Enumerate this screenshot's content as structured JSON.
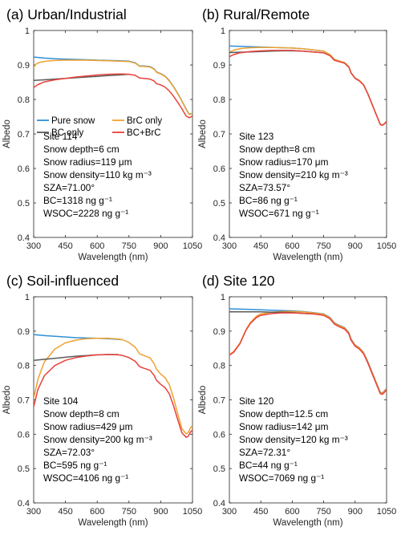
{
  "colors": {
    "pure_snow": "#2E8FD6",
    "brc_only": "#F0A030",
    "bc_only": "#5A5A5A",
    "bc_brc": "#E8413A"
  },
  "legend": {
    "pure_snow": "Pure snow",
    "brc_only": "BrC only",
    "bc_only": "BC only",
    "bc_brc": "BC+BrC"
  },
  "chart_data": [
    {
      "type": "line",
      "title": "(a) Urban/Industrial",
      "xlabel": "Wavelength (nm)",
      "ylabel": "Albedo",
      "xlim": [
        300,
        1050
      ],
      "ylim": [
        0.4,
        1.0
      ],
      "xticks": [
        "300",
        "450",
        "600",
        "750",
        "900",
        "1050"
      ],
      "yticks": [
        "0.4",
        "0.5",
        "0.6",
        "0.7",
        "0.8",
        "0.9",
        "1"
      ],
      "info": [
        "Site 114",
        "Snow depth=6 cm",
        "Snow radius=119 μm",
        "Snow density=110 kg m⁻³",
        "SZA=71.00°",
        "BC=1318 ng g⁻¹",
        "WSOC=2228 ng g⁻¹"
      ],
      "series": [
        {
          "name": "Pure snow",
          "color_key": "pure_snow",
          "x": [
            300,
            350,
            400,
            450,
            500,
            550,
            600,
            650,
            700,
            750,
            780,
            800,
            820,
            850,
            870,
            880,
            900,
            920,
            940,
            960,
            980,
            1000,
            1020,
            1035,
            1050
          ],
          "y": [
            0.923,
            0.92,
            0.918,
            0.917,
            0.916,
            0.915,
            0.914,
            0.913,
            0.912,
            0.911,
            0.906,
            0.897,
            0.897,
            0.895,
            0.888,
            0.88,
            0.875,
            0.868,
            0.855,
            0.838,
            0.818,
            0.796,
            0.772,
            0.757,
            0.76
          ]
        },
        {
          "name": "BrC only",
          "color_key": "brc_only",
          "x": [
            300,
            310,
            330,
            360,
            400,
            450,
            500,
            550,
            600,
            650,
            700,
            750,
            780,
            800,
            820,
            850,
            870,
            880,
            900,
            920,
            940,
            960,
            980,
            1000,
            1020,
            1035,
            1050
          ],
          "y": [
            0.893,
            0.902,
            0.908,
            0.911,
            0.913,
            0.914,
            0.914,
            0.914,
            0.913,
            0.912,
            0.911,
            0.91,
            0.905,
            0.896,
            0.896,
            0.894,
            0.887,
            0.879,
            0.874,
            0.867,
            0.854,
            0.837,
            0.817,
            0.795,
            0.771,
            0.756,
            0.759
          ]
        },
        {
          "name": "BC only",
          "color_key": "bc_only",
          "x": [
            300,
            350,
            400,
            450,
            500,
            550,
            600,
            650,
            700,
            750
          ],
          "y": [
            0.855,
            0.857,
            0.859,
            0.861,
            0.863,
            0.865,
            0.867,
            0.869,
            0.871,
            0.873
          ]
        },
        {
          "name": "BC+BrC",
          "color_key": "bc_brc",
          "x": [
            300,
            320,
            350,
            400,
            450,
            500,
            550,
            600,
            650,
            700,
            720,
            750,
            780,
            800,
            820,
            850,
            870,
            880,
            900,
            920,
            940,
            960,
            980,
            1000,
            1020,
            1035,
            1050
          ],
          "y": [
            0.835,
            0.843,
            0.851,
            0.857,
            0.861,
            0.865,
            0.868,
            0.871,
            0.873,
            0.874,
            0.874,
            0.873,
            0.87,
            0.862,
            0.861,
            0.859,
            0.853,
            0.846,
            0.842,
            0.836,
            0.825,
            0.81,
            0.792,
            0.773,
            0.752,
            0.747,
            0.752
          ]
        }
      ]
    },
    {
      "type": "line",
      "title": "(b) Rural/Remote",
      "xlabel": "Wavelength (nm)",
      "ylabel": "Albedo",
      "xlim": [
        300,
        1050
      ],
      "ylim": [
        0.4,
        1.0
      ],
      "xticks": [
        "300",
        "450",
        "600",
        "750",
        "900",
        "1050"
      ],
      "yticks": [
        "0.4",
        "0.5",
        "0.6",
        "0.7",
        "0.8",
        "0.9",
        "1"
      ],
      "info": [
        "Site 123",
        "Snow depth=8 cm",
        "Snow radius=170 μm",
        "Snow density=210 kg m⁻³",
        "SZA=73.57°",
        "BC=86 ng g⁻¹",
        "WSOC=671 ng g⁻¹"
      ],
      "series": [
        {
          "name": "Pure snow",
          "color_key": "pure_snow",
          "x": [
            300,
            350,
            400,
            450,
            500,
            550,
            600,
            650,
            700,
            750,
            780,
            800,
            820,
            850,
            870,
            880,
            900,
            920,
            940,
            960,
            980,
            1000,
            1020,
            1030,
            1040,
            1050
          ],
          "y": [
            0.955,
            0.954,
            0.953,
            0.952,
            0.951,
            0.95,
            0.949,
            0.947,
            0.944,
            0.94,
            0.93,
            0.917,
            0.912,
            0.907,
            0.895,
            0.878,
            0.862,
            0.855,
            0.843,
            0.818,
            0.788,
            0.758,
            0.728,
            0.726,
            0.73,
            0.737
          ]
        },
        {
          "name": "BrC only",
          "color_key": "brc_only",
          "x": [
            300,
            310,
            330,
            360,
            400,
            450,
            500,
            550,
            600,
            650,
            700,
            750,
            780,
            800,
            820,
            850,
            870,
            880,
            900,
            920,
            940,
            960,
            980,
            1000,
            1020,
            1030,
            1040,
            1050
          ],
          "y": [
            0.935,
            0.94,
            0.945,
            0.948,
            0.95,
            0.951,
            0.951,
            0.95,
            0.949,
            0.947,
            0.944,
            0.94,
            0.93,
            0.917,
            0.912,
            0.907,
            0.895,
            0.878,
            0.862,
            0.855,
            0.843,
            0.818,
            0.788,
            0.758,
            0.728,
            0.726,
            0.73,
            0.737
          ]
        },
        {
          "name": "BC only",
          "color_key": "bc_only",
          "x": [
            300,
            350,
            400,
            450,
            500,
            550,
            600,
            650,
            700,
            750
          ],
          "y": [
            0.936,
            0.937,
            0.938,
            0.939,
            0.94,
            0.941,
            0.941,
            0.94,
            0.938,
            0.935
          ]
        },
        {
          "name": "BC+BrC",
          "color_key": "bc_brc",
          "x": [
            300,
            320,
            350,
            400,
            450,
            500,
            550,
            600,
            650,
            700,
            750,
            780,
            800,
            820,
            850,
            870,
            880,
            900,
            920,
            940,
            960,
            980,
            1000,
            1020,
            1030,
            1040,
            1050
          ],
          "y": [
            0.924,
            0.93,
            0.935,
            0.939,
            0.941,
            0.942,
            0.942,
            0.942,
            0.94,
            0.938,
            0.935,
            0.927,
            0.914,
            0.91,
            0.905,
            0.893,
            0.877,
            0.861,
            0.854,
            0.842,
            0.817,
            0.787,
            0.757,
            0.727,
            0.725,
            0.729,
            0.736
          ]
        }
      ]
    },
    {
      "type": "line",
      "title": "(c) Soil-influenced",
      "xlabel": "Wavelength (nm)",
      "ylabel": "Albedo",
      "xlim": [
        300,
        1050
      ],
      "ylim": [
        0.4,
        1.0
      ],
      "xticks": [
        "300",
        "450",
        "600",
        "750",
        "900",
        "1050"
      ],
      "yticks": [
        "0.4",
        "0.5",
        "0.6",
        "0.7",
        "0.8",
        "0.9",
        "1"
      ],
      "info": [
        "Site 104",
        "Snow depth=8 cm",
        "Snow radius=429 μm",
        "Snow density=200 kg m⁻³",
        "SZA=72.03°",
        "BC=595 ng g⁻¹",
        "WSOC=4106 ng g⁻¹"
      ],
      "series": [
        {
          "name": "Pure snow",
          "color_key": "pure_snow",
          "x": [
            300,
            350,
            400,
            450,
            500,
            550,
            600,
            650,
            700,
            720
          ],
          "y": [
            0.89,
            0.887,
            0.885,
            0.883,
            0.881,
            0.88,
            0.879,
            0.878,
            0.876,
            0.875
          ]
        },
        {
          "name": "BrC only",
          "color_key": "brc_only",
          "x": [
            300,
            320,
            350,
            400,
            450,
            500,
            550,
            600,
            650,
            700,
            720,
            750,
            780,
            800,
            820,
            850,
            870,
            880,
            900,
            920,
            940,
            960,
            980,
            1000,
            1020,
            1030,
            1040,
            1050
          ],
          "y": [
            0.705,
            0.76,
            0.81,
            0.848,
            0.866,
            0.874,
            0.878,
            0.879,
            0.879,
            0.877,
            0.875,
            0.867,
            0.853,
            0.834,
            0.829,
            0.822,
            0.804,
            0.789,
            0.775,
            0.765,
            0.745,
            0.707,
            0.66,
            0.616,
            0.601,
            0.605,
            0.618,
            0.625
          ]
        },
        {
          "name": "BC only",
          "color_key": "bc_only",
          "x": [
            300,
            350,
            400,
            450,
            500,
            550,
            600,
            650,
            700
          ],
          "y": [
            0.815,
            0.818,
            0.821,
            0.824,
            0.827,
            0.829,
            0.831,
            0.832,
            0.832
          ]
        },
        {
          "name": "BC+BrC",
          "color_key": "bc_brc",
          "x": [
            300,
            320,
            350,
            400,
            450,
            500,
            550,
            600,
            650,
            700,
            720,
            750,
            780,
            800,
            820,
            850,
            870,
            880,
            900,
            920,
            940,
            960,
            980,
            1000,
            1020,
            1030,
            1040,
            1050
          ],
          "y": [
            0.68,
            0.73,
            0.77,
            0.8,
            0.815,
            0.823,
            0.828,
            0.831,
            0.832,
            0.831,
            0.829,
            0.823,
            0.812,
            0.797,
            0.792,
            0.786,
            0.77,
            0.757,
            0.745,
            0.736,
            0.718,
            0.684,
            0.643,
            0.604,
            0.591,
            0.594,
            0.606,
            0.612
          ]
        }
      ]
    },
    {
      "type": "line",
      "title": "(d) Site 120",
      "xlabel": "Wavelength (nm)",
      "ylabel": "Albedo",
      "xlim": [
        300,
        1050
      ],
      "ylim": [
        0.4,
        1.0
      ],
      "xticks": [
        "300",
        "450",
        "600",
        "750",
        "900",
        "1050"
      ],
      "yticks": [
        "0.4",
        "0.5",
        "0.6",
        "0.7",
        "0.8",
        "0.9",
        "1"
      ],
      "info": [
        "Site 120",
        "Snow depth=12.5 cm",
        "Snow radius=142 μm",
        "Snow density=120 kg m⁻³",
        "SZA=72.31°",
        "BC=44 ng g⁻¹",
        "WSOC=7069 ng g⁻¹"
      ],
      "series": [
        {
          "name": "Pure snow",
          "color_key": "pure_snow",
          "x": [
            300,
            350,
            400,
            450,
            500,
            550,
            600,
            650,
            700,
            750,
            780,
            800,
            820,
            850,
            870,
            880,
            900,
            920,
            940,
            960,
            980,
            1000,
            1020,
            1030,
            1040,
            1050
          ],
          "y": [
            0.965,
            0.964,
            0.963,
            0.962,
            0.961,
            0.96,
            0.959,
            0.957,
            0.954,
            0.95,
            0.94,
            0.925,
            0.918,
            0.91,
            0.896,
            0.878,
            0.86,
            0.852,
            0.838,
            0.812,
            0.782,
            0.752,
            0.722,
            0.72,
            0.726,
            0.734
          ]
        },
        {
          "name": "BrC only",
          "color_key": "brc_only",
          "x": [
            300,
            320,
            350,
            380,
            400,
            430,
            450,
            500,
            550,
            600,
            650,
            700,
            750,
            780,
            800,
            820,
            850,
            870,
            880,
            900,
            920,
            940,
            960,
            980,
            1000,
            1020,
            1030,
            1040,
            1050
          ],
          "y": [
            0.832,
            0.84,
            0.865,
            0.905,
            0.925,
            0.944,
            0.95,
            0.955,
            0.957,
            0.957,
            0.956,
            0.953,
            0.949,
            0.939,
            0.924,
            0.917,
            0.909,
            0.895,
            0.877,
            0.859,
            0.851,
            0.837,
            0.811,
            0.781,
            0.751,
            0.721,
            0.719,
            0.725,
            0.733
          ]
        },
        {
          "name": "BC only",
          "color_key": "bc_only",
          "x": [
            300,
            350,
            400,
            450,
            500,
            550,
            600,
            650,
            700
          ],
          "y": [
            0.956,
            0.956,
            0.956,
            0.956,
            0.955,
            0.955,
            0.954,
            0.952,
            0.95
          ]
        },
        {
          "name": "BC+BrC",
          "color_key": "bc_brc",
          "x": [
            300,
            320,
            350,
            380,
            400,
            430,
            450,
            500,
            550,
            600,
            650,
            700,
            750,
            780,
            800,
            820,
            850,
            870,
            880,
            900,
            920,
            940,
            960,
            980,
            1000,
            1020,
            1030,
            1040,
            1050
          ],
          "y": [
            0.83,
            0.838,
            0.863,
            0.903,
            0.922,
            0.94,
            0.946,
            0.951,
            0.953,
            0.953,
            0.952,
            0.95,
            0.946,
            0.936,
            0.921,
            0.914,
            0.906,
            0.892,
            0.874,
            0.856,
            0.848,
            0.834,
            0.808,
            0.778,
            0.748,
            0.718,
            0.716,
            0.722,
            0.73
          ]
        }
      ]
    }
  ]
}
